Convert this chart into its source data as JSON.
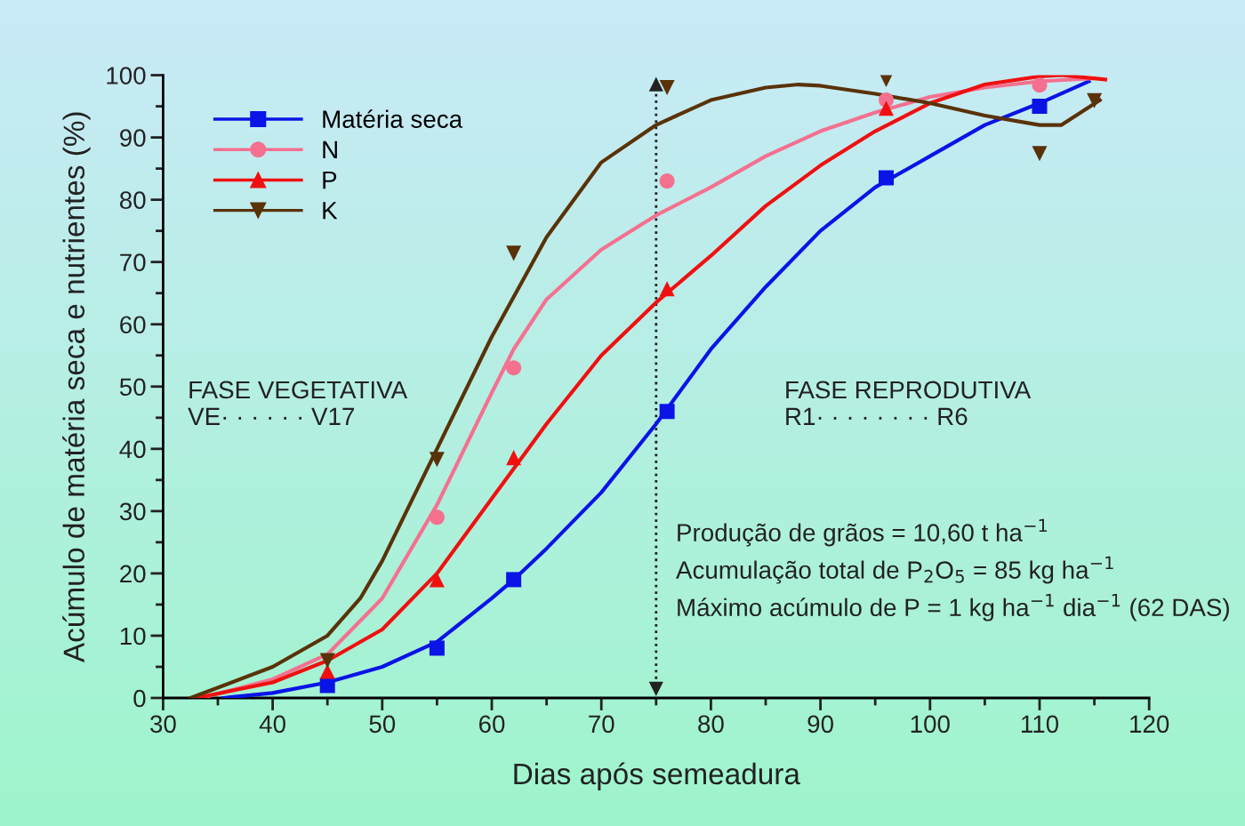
{
  "chart_data": {
    "type": "scatter",
    "xlabel": "Dias após semeadura",
    "ylabel": "Acúmulo de matéria seca e nutrientes (%)",
    "xlim": [
      30,
      120
    ],
    "ylim": [
      0,
      100
    ],
    "xticks": [
      30,
      {
        "value": 35,
        "label": null
      },
      40,
      {
        "value": 45,
        "label": null
      },
      50,
      {
        "value": 55,
        "label": null
      },
      60,
      {
        "value": 65,
        "label": null
      },
      70,
      {
        "value": 75,
        "label": null
      },
      80,
      {
        "value": 85,
        "label": null
      },
      90,
      {
        "value": 95,
        "label": null
      },
      100,
      {
        "value": 105,
        "label": null
      },
      110,
      {
        "value": 115,
        "label": null
      },
      120
    ],
    "yticks": [
      0,
      {
        "value": 5,
        "label": null
      },
      10,
      {
        "value": 15,
        "label": null
      },
      20,
      {
        "value": 25,
        "label": null
      },
      30,
      {
        "value": 35,
        "label": null
      },
      40,
      {
        "value": 45,
        "label": null
      },
      50,
      {
        "value": 55,
        "label": null
      },
      60,
      {
        "value": 65,
        "label": null
      },
      70,
      {
        "value": 75,
        "label": null
      },
      80,
      {
        "value": 85,
        "label": null
      },
      90,
      {
        "value": 95,
        "label": null
      },
      100
    ],
    "grid": false,
    "legend": "top left",
    "series": [
      {
        "name": "Matéria seca",
        "color": "#0a14e6",
        "marker": "square",
        "x": [
          45,
          55,
          62,
          76,
          96,
          110
        ],
        "values": [
          2,
          8,
          19,
          46,
          83.5,
          95
        ]
      },
      {
        "name": "N",
        "color": "#f5708f",
        "marker": "circle",
        "x": [
          55,
          62,
          76,
          96,
          110
        ],
        "values": [
          29,
          53,
          83,
          96,
          98.4
        ]
      },
      {
        "name": "P",
        "color": "#f01010",
        "marker": "triangle",
        "x": [
          45,
          55,
          62,
          76,
          96
        ],
        "values": [
          4.3,
          19,
          38.6,
          65.7,
          94.7
        ]
      },
      {
        "name": "K",
        "color": "#5a3208",
        "marker": "triangle_down",
        "x": [
          45,
          55,
          62,
          76,
          96,
          110,
          115
        ],
        "values": [
          6,
          38.3,
          71.4,
          98,
          99.3,
          87.4,
          95.9
        ]
      },
      {
        "type": "line",
        "color": "#0a14e6",
        "x": [
          35.5,
          40,
          45,
          50,
          55,
          60,
          62,
          65,
          70,
          75,
          80,
          85,
          90,
          95,
          100,
          105,
          110,
          114.5
        ],
        "values": [
          0,
          0.8,
          2.5,
          5,
          9,
          16,
          19,
          24,
          33,
          44,
          56,
          66,
          75,
          82,
          87,
          92,
          95.5,
          99
        ]
      },
      {
        "type": "line",
        "color": "#f5708f",
        "x": [
          33.5,
          40,
          45,
          50,
          55,
          60,
          62,
          65,
          70,
          75,
          80,
          85,
          90,
          95,
          100,
          105,
          110,
          115
        ],
        "values": [
          0,
          3,
          7,
          16,
          31,
          49,
          56,
          64,
          72,
          77.5,
          82,
          87,
          91,
          94,
          96.5,
          98,
          99,
          99.5
        ]
      },
      {
        "type": "line",
        "color": "#f01010",
        "x": [
          33,
          40,
          45,
          50,
          55,
          60,
          65,
          70,
          75,
          80,
          85,
          90,
          95,
          100,
          105,
          110,
          112,
          116
        ],
        "values": [
          0,
          2.5,
          6,
          11,
          20,
          32,
          44,
          55,
          63.5,
          71,
          79,
          85.5,
          91,
          95.5,
          98.5,
          99.8,
          100,
          99.3
        ]
      },
      {
        "type": "line",
        "color": "#5a3208",
        "x": [
          32.5,
          40,
          45,
          48,
          50,
          55,
          60,
          65,
          70,
          75,
          80,
          85,
          88,
          90,
          95,
          100,
          105,
          110,
          112,
          115.5
        ],
        "values": [
          0,
          5,
          10,
          16,
          22,
          40,
          58,
          74,
          86,
          92,
          96,
          98,
          98.5,
          98.3,
          97,
          95.5,
          93.5,
          92,
          92,
          96
        ]
      }
    ],
    "ref_lines": [
      {
        "axis": "x",
        "value": 75,
        "color": "#222222",
        "line_style": "dotted"
      }
    ],
    "annotations": [
      "FASE VEGETATIVA\nVE· · · · · · V17",
      "FASE REPRODUTIVA\nR1· · · · · · · · R6",
      "Produção de grãos = 10,60 t ha$^{−1}$",
      "Acumulação total de P$_{2}$O$_{5}$ = 85 kg ha$^{−1}$",
      "Máximo acúmulo de P = 1 kg ha$^{−1}$ dia$^{−1}$ (62 DAS)"
    ]
  }
}
